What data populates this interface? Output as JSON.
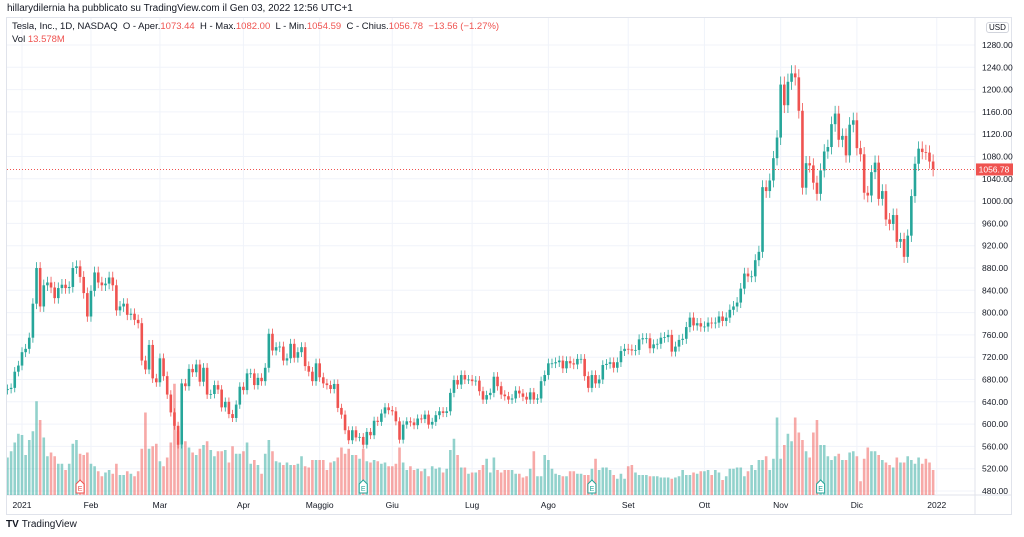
{
  "header": {
    "published": "hillarydilernia ha pubblicato su TradingView.com il Gen 03, 2022 12:56 UTC+1",
    "symbol": "Tesla, Inc., 1D, NASDAQ",
    "o_label": "O - Aper.",
    "o": "1073.44",
    "h_label": "H - Max.",
    "h": "1082.00",
    "l_label": "L - Min.",
    "l": "1054.59",
    "c_label": "C - Chius.",
    "c": "1056.78",
    "change": "−13.56 (−1.27%)",
    "vol_label": "Vol",
    "vol": "13.578M"
  },
  "currency": "USD",
  "brand": "TradingView",
  "colors": {
    "up": "#26a69a",
    "down": "#ef5350"
  },
  "chart_data": {
    "type": "candlestick",
    "ylim": [
      480,
      1300
    ],
    "y_ticks": [
      480,
      520,
      560,
      600,
      640,
      680,
      720,
      760,
      800,
      840,
      880,
      920,
      960,
      1000,
      1040,
      1080,
      1120,
      1160,
      1200,
      1240,
      1280
    ],
    "last_price": "1056.78",
    "last_value": 1056.78,
    "x_ticks": [
      {
        "label": "2021",
        "i": 5
      },
      {
        "label": "Feb",
        "i": 24
      },
      {
        "label": "Mar",
        "i": 43
      },
      {
        "label": "Apr",
        "i": 66
      },
      {
        "label": "Maggio",
        "i": 87
      },
      {
        "label": "Giu",
        "i": 107
      },
      {
        "label": "Lug",
        "i": 129
      },
      {
        "label": "Ago",
        "i": 150
      },
      {
        "label": "Set",
        "i": 172
      },
      {
        "label": "Ott",
        "i": 193
      },
      {
        "label": "Nov",
        "i": 214
      },
      {
        "label": "Dic",
        "i": 235
      },
      {
        "label": "2022",
        "i": 257
      }
    ],
    "earnings": [
      {
        "i": 21,
        "type": "down"
      },
      {
        "i": 99,
        "type": "up"
      },
      {
        "i": 162,
        "type": "up"
      },
      {
        "i": 225,
        "type": "up"
      }
    ],
    "first_open": 661,
    "close": [
      661,
      663,
      665,
      694,
      705,
      729,
      735,
      755,
      816,
      880,
      811,
      849,
      854,
      845,
      826,
      844,
      850,
      844,
      846,
      880,
      883,
      864,
      835,
      793,
      839,
      872,
      854,
      849,
      852,
      863,
      849,
      804,
      811,
      816,
      796,
      798,
      787,
      781,
      714,
      698,
      742,
      682,
      675,
      718,
      686,
      653,
      621,
      597,
      563,
      673,
      668,
      699,
      693,
      707,
      676,
      701,
      653,
      654,
      670,
      662,
      630,
      640,
      618,
      611,
      635,
      667,
      661,
      691,
      691,
      670,
      683,
      677,
      701,
      762,
      732,
      738,
      739,
      714,
      718,
      744,
      719,
      729,
      738,
      704,
      694,
      677,
      709,
      684,
      673,
      670,
      663,
      672,
      629,
      617,
      589,
      571,
      589,
      576,
      577,
      563,
      586,
      580,
      606,
      604,
      619,
      630,
      625,
      623,
      605,
      572,
      599,
      605,
      603,
      598,
      610,
      609,
      617,
      599,
      604,
      616,
      623,
      620,
      623,
      656,
      679,
      671,
      688,
      680,
      680,
      677,
      678,
      659,
      644,
      652,
      656,
      685,
      668,
      653,
      650,
      644,
      646,
      660,
      655,
      649,
      644,
      657,
      644,
      646,
      677,
      688,
      709,
      709,
      711,
      714,
      700,
      713,
      709,
      707,
      717,
      717,
      686,
      665,
      688,
      673,
      680,
      706,
      708,
      711,
      701,
      711,
      731,
      735,
      734,
      732,
      733,
      752,
      754,
      754,
      736,
      743,
      744,
      755,
      756,
      760,
      730,
      739,
      751,
      753,
      774,
      791,
      777,
      781,
      775,
      775,
      782,
      781,
      782,
      793,
      785,
      791,
      805,
      811,
      818,
      843,
      870,
      865,
      865,
      894,
      909,
      1025,
      1018,
      1037,
      1077,
      1114,
      1209,
      1172,
      1214,
      1229,
      1222,
      1162,
      1024,
      1068,
      1064,
      1033,
      1013,
      1055,
      1089,
      1097,
      1138,
      1157,
      1110,
      1117,
      1082,
      1137,
      1145,
      1095,
      1084,
      1015,
      1010,
      1052,
      1069,
      1004,
      1018,
      967,
      959,
      975,
      927,
      932,
      900,
      938,
      1009,
      1067,
      1094,
      1088,
      1087,
      1071,
      1057
    ],
    "volume_m": [
      40,
      30,
      35,
      42,
      49,
      48,
      32,
      44,
      51,
      75,
      60,
      46,
      31,
      34,
      31,
      25,
      25,
      20,
      25,
      41,
      44,
      33,
      32,
      34,
      25,
      23,
      19,
      15,
      18,
      20,
      17,
      25,
      16,
      16,
      19,
      17,
      15,
      19,
      37,
      66,
      37,
      39,
      41,
      27,
      23,
      30,
      42,
      89,
      51,
      40,
      43,
      38,
      34,
      32,
      37,
      40,
      43,
      36,
      31,
      35,
      35,
      36,
      26,
      39,
      33,
      33,
      35,
      42,
      25,
      28,
      24,
      17,
      33,
      44,
      35,
      27,
      26,
      24,
      26,
      24,
      24,
      25,
      31,
      23,
      22,
      28,
      28,
      28,
      28,
      20,
      26,
      27,
      30,
      38,
      33,
      37,
      32,
      32,
      29,
      37,
      27,
      26,
      28,
      27,
      25,
      26,
      23,
      23,
      25,
      38,
      26,
      20,
      23,
      20,
      21,
      19,
      21,
      15,
      23,
      21,
      22,
      18,
      21,
      36,
      45,
      32,
      22,
      22,
      17,
      18,
      18,
      20,
      24,
      29,
      18,
      30,
      20,
      18,
      20,
      20,
      20,
      17,
      17,
      14,
      15,
      21,
      35,
      15,
      15,
      32,
      28,
      21,
      17,
      16,
      15,
      15,
      19,
      19,
      17,
      17,
      16,
      16,
      21,
      29,
      20,
      22,
      22,
      20,
      16,
      13,
      17,
      13,
      23,
      24,
      18,
      16,
      16,
      16,
      15,
      15,
      15,
      14,
      14,
      14,
      13,
      14,
      15,
      20,
      16,
      16,
      18,
      17,
      19,
      19,
      20,
      16,
      20,
      18,
      12,
      15,
      21,
      21,
      22,
      22,
      15,
      19,
      24,
      20,
      28,
      28,
      31,
      20,
      29,
      62,
      29,
      40,
      49,
      43,
      62,
      50,
      44,
      35,
      30,
      50,
      60,
      40,
      40,
      31,
      28,
      31,
      33,
      28,
      28,
      34,
      35,
      31,
      11,
      29,
      38,
      35,
      35,
      32,
      28,
      26,
      24,
      22,
      30,
      26,
      26,
      31,
      28,
      25,
      30,
      25,
      29,
      26,
      20,
      13,
      25,
      20,
      15,
      14,
      13.6
    ]
  }
}
